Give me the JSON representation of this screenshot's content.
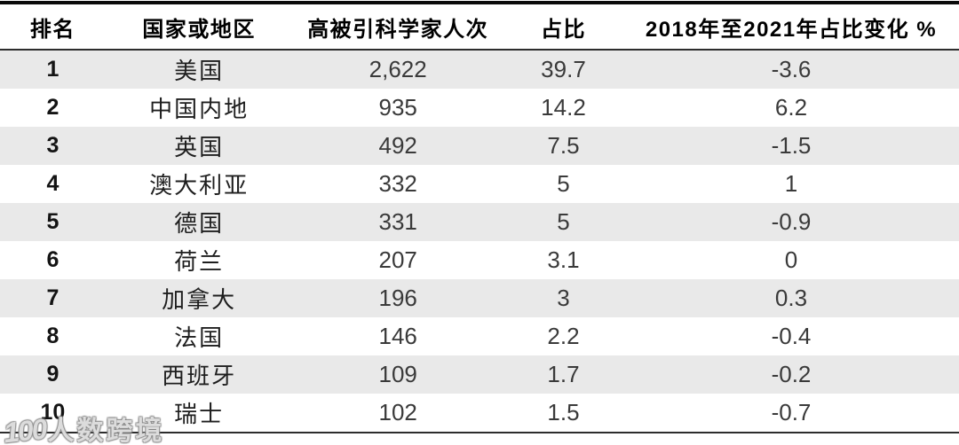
{
  "table": {
    "columns": [
      {
        "key": "rank",
        "label": "排名"
      },
      {
        "key": "country",
        "label": "国家或地区"
      },
      {
        "key": "count",
        "label": "高被引科学家人次"
      },
      {
        "key": "share",
        "label": "占比"
      },
      {
        "key": "change",
        "label": "2018年至2021年占比变化 %"
      }
    ],
    "rows": [
      {
        "rank": "1",
        "country": "美国",
        "count": "2,622",
        "share": "39.7",
        "change": "-3.6"
      },
      {
        "rank": "2",
        "country": "中国内地",
        "count": "935",
        "share": "14.2",
        "change": "6.2"
      },
      {
        "rank": "3",
        "country": "英国",
        "count": "492",
        "share": "7.5",
        "change": "-1.5"
      },
      {
        "rank": "4",
        "country": "澳大利亚",
        "count": "332",
        "share": "5",
        "change": "1"
      },
      {
        "rank": "5",
        "country": "德国",
        "count": "331",
        "share": "5",
        "change": "-0.9"
      },
      {
        "rank": "6",
        "country": "荷兰",
        "count": "207",
        "share": "3.1",
        "change": "0"
      },
      {
        "rank": "7",
        "country": "加拿大",
        "count": "196",
        "share": "3",
        "change": "0.3"
      },
      {
        "rank": "8",
        "country": "法国",
        "count": "146",
        "share": "2.2",
        "change": "-0.4"
      },
      {
        "rank": "9",
        "country": "西班牙",
        "count": "109",
        "share": "1.7",
        "change": "-0.2"
      },
      {
        "rank": "10",
        "country": "瑞士",
        "count": "102",
        "share": "1.5",
        "change": "-0.7"
      }
    ]
  },
  "watermark": {
    "logo": "100",
    "text": "人数跨境"
  },
  "colors": {
    "stripe": "#e9e9e9",
    "top_border": "#0a0a0a",
    "rule": "#2d2d2d",
    "header_text": "#000000",
    "value_text": "#3a3a3a"
  },
  "chart_data": {
    "type": "table",
    "title": "",
    "columns": [
      "排名",
      "国家或地区",
      "高被引科学家人次",
      "占比",
      "2018年至2021年占比变化 %"
    ],
    "rows": [
      [
        1,
        "美国",
        2622,
        39.7,
        -3.6
      ],
      [
        2,
        "中国内地",
        935,
        14.2,
        6.2
      ],
      [
        3,
        "英国",
        492,
        7.5,
        -1.5
      ],
      [
        4,
        "澳大利亚",
        332,
        5.0,
        1.0
      ],
      [
        5,
        "德国",
        331,
        5.0,
        -0.9
      ],
      [
        6,
        "荷兰",
        207,
        3.1,
        0.0
      ],
      [
        7,
        "加拿大",
        196,
        3.0,
        0.3
      ],
      [
        8,
        "法国",
        146,
        2.2,
        -0.4
      ],
      [
        9,
        "西班牙",
        109,
        1.7,
        -0.2
      ],
      [
        10,
        "瑞士",
        102,
        1.5,
        -0.7
      ]
    ]
  }
}
